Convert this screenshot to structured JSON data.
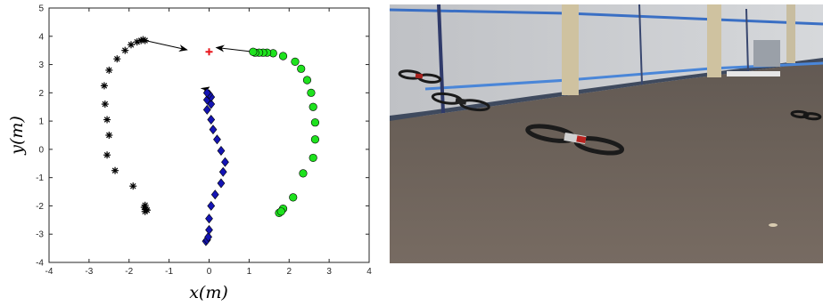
{
  "chart_data": {
    "type": "scatter",
    "xlabel": "x(m)",
    "ylabel": "y(m)",
    "xlim": [
      -4,
      4
    ],
    "ylim": [
      -4,
      5
    ],
    "xticks": [
      -4,
      -3,
      -2,
      -1,
      0,
      1,
      2,
      3,
      4
    ],
    "yticks": [
      -4,
      -3,
      -2,
      -1,
      0,
      1,
      2,
      3,
      4,
      5
    ],
    "grid": false,
    "target": {
      "x": 0.0,
      "y": 3.45,
      "marker": "plus",
      "color": "#e8171d"
    },
    "series": [
      {
        "marker": "asterisk",
        "color": "#000000",
        "points": [
          [
            -1.6,
            -2.2
          ],
          [
            -1.58,
            -2.12
          ],
          [
            -1.62,
            -2.05
          ],
          [
            -1.6,
            -1.98
          ],
          [
            -1.55,
            -2.15
          ],
          [
            -1.9,
            -1.3
          ],
          [
            -2.35,
            -0.75
          ],
          [
            -2.55,
            -0.2
          ],
          [
            -2.5,
            0.5
          ],
          [
            -2.55,
            1.05
          ],
          [
            -2.6,
            1.6
          ],
          [
            -2.62,
            2.25
          ],
          [
            -2.5,
            2.8
          ],
          [
            -2.3,
            3.2
          ],
          [
            -2.1,
            3.5
          ],
          [
            -1.95,
            3.7
          ],
          [
            -1.8,
            3.8
          ],
          [
            -1.7,
            3.85
          ],
          [
            -1.65,
            3.88
          ],
          [
            -1.6,
            3.85
          ]
        ],
        "arrow_to": [
          -0.55,
          3.52
        ]
      },
      {
        "marker": "diamond",
        "color": "#1414b4",
        "points": [
          [
            -0.08,
            -3.25
          ],
          [
            -0.05,
            -3.2
          ],
          [
            -0.02,
            -3.1
          ],
          [
            0.0,
            -2.85
          ],
          [
            0.0,
            -2.45
          ],
          [
            0.05,
            -2.0
          ],
          [
            0.15,
            -1.6
          ],
          [
            0.3,
            -1.2
          ],
          [
            0.35,
            -0.8
          ],
          [
            0.4,
            -0.45
          ],
          [
            0.3,
            -0.05
          ],
          [
            0.2,
            0.35
          ],
          [
            0.1,
            0.7
          ],
          [
            0.05,
            1.05
          ],
          [
            -0.05,
            1.4
          ],
          [
            0.05,
            1.6
          ],
          [
            -0.05,
            1.75
          ],
          [
            0.05,
            1.85
          ],
          [
            0.0,
            1.95
          ],
          [
            -0.05,
            2.0
          ]
        ],
        "arrow_to": [
          0.0,
          2.2
        ]
      },
      {
        "marker": "circle",
        "color": "#1ee21e",
        "points": [
          [
            1.75,
            -2.25
          ],
          [
            1.85,
            -2.1
          ],
          [
            1.8,
            -2.2
          ],
          [
            2.1,
            -1.7
          ],
          [
            2.35,
            -0.85
          ],
          [
            2.6,
            -0.3
          ],
          [
            2.65,
            0.35
          ],
          [
            2.65,
            0.95
          ],
          [
            2.6,
            1.5
          ],
          [
            2.55,
            2.0
          ],
          [
            2.45,
            2.45
          ],
          [
            2.3,
            2.85
          ],
          [
            2.15,
            3.1
          ],
          [
            1.85,
            3.3
          ],
          [
            1.6,
            3.4
          ],
          [
            1.45,
            3.42
          ],
          [
            1.35,
            3.42
          ],
          [
            1.25,
            3.42
          ],
          [
            1.15,
            3.42
          ],
          [
            1.1,
            3.45
          ]
        ],
        "arrow_to": [
          0.18,
          3.6
        ]
      }
    ]
  }
}
